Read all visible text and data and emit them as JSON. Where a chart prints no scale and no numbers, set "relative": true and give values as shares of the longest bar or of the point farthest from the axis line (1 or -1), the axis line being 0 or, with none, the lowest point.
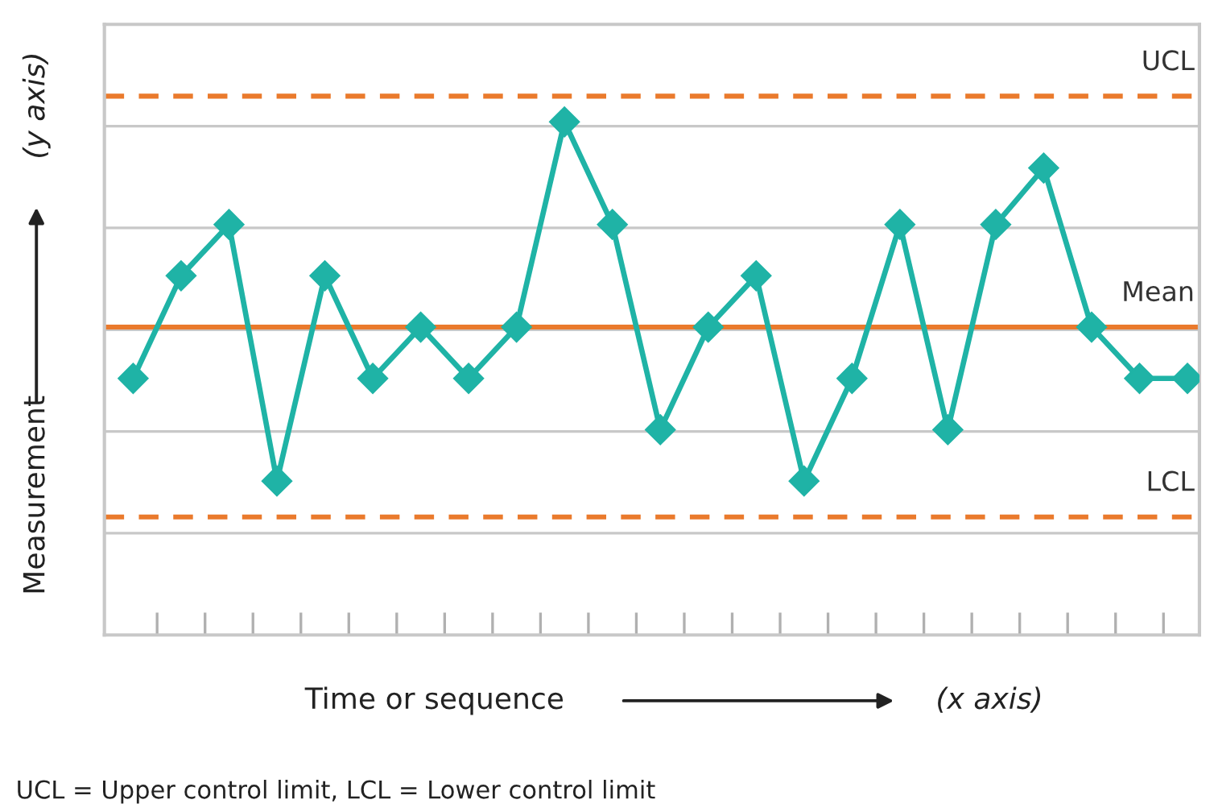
{
  "chart_data": {
    "type": "line",
    "relative": true,
    "xlabel": "Time or sequence",
    "ylabel": "Measurement",
    "categories": [
      null,
      null,
      null,
      null,
      null,
      null,
      null,
      null,
      null,
      null,
      null,
      null,
      null,
      null,
      null,
      null,
      null,
      null,
      null,
      null,
      null,
      null,
      null
    ],
    "series": [
      {
        "color": "#1fb3a6",
        "values": [
          0.5,
          0.7,
          0.8,
          0.3,
          0.7,
          0.5,
          0.6,
          0.5,
          0.6,
          1.0,
          0.8,
          0.4,
          0.6,
          0.7,
          0.3,
          0.5,
          0.8,
          0.4,
          0.8,
          0.91,
          0.6,
          0.5,
          0.5
        ]
      }
    ],
    "marker": "diamond",
    "line_style": "solid",
    "grid": "y",
    "legend": false,
    "tick_labels": false,
    "ref_lines": [
      {
        "axis": "y",
        "value": 1.05,
        "label": "UCL",
        "color": "#ea7a2c",
        "line_style": "dashed"
      },
      {
        "axis": "y",
        "value": 0.6,
        "label": "Mean",
        "color": "#ea7a2c",
        "line_style": "solid"
      },
      {
        "axis": "y",
        "value": 0.23,
        "label": "LCL",
        "color": "#ea7a2c",
        "line_style": "dashed"
      }
    ],
    "annotations": [
      "(y axis)",
      "(x axis)",
      "UCL = Upper control limit, LCL = Lower control limit"
    ]
  }
}
